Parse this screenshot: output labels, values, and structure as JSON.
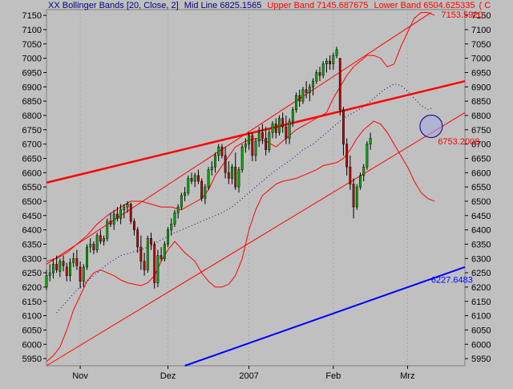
{
  "header": {
    "prefix": "XX Bollinger Bands [20, Close, 2]",
    "mid_text": "Mid Line 6825.1565",
    "upper_text": "Upper Band 7145.687675",
    "lower_text": "Lower Band 6504.625335",
    "tail_text": "( C"
  },
  "colors": {
    "background": "#c0c0c0",
    "upper_band": "#ff0000",
    "lower_band": "#ff0000",
    "mid_line": "#000080",
    "trend_red": "#ff0000",
    "trend_blue": "#0000ff",
    "candle_up": "#00b000",
    "candle_down": "#c00000",
    "header_left": "#000080",
    "header_right": "#ff0000"
  },
  "chart_data": {
    "type": "candlestick",
    "ylim": [
      5925,
      7170
    ],
    "y_ticks": [
      5950,
      6000,
      6050,
      6100,
      6150,
      6200,
      6250,
      6300,
      6350,
      6400,
      6450,
      6500,
      6550,
      6600,
      6650,
      6700,
      6750,
      6800,
      6850,
      6900,
      6950,
      7000,
      7050,
      7100,
      7150
    ],
    "x_range": [
      0,
      124
    ],
    "x_labels": [
      {
        "label": "Nov",
        "x": 10
      },
      {
        "label": "Dez",
        "x": 36
      },
      {
        "label": "2007",
        "x": 60
      },
      {
        "label": "Feb",
        "x": 85
      },
      {
        "label": "Mrz",
        "x": 107
      }
    ],
    "price_labels": [
      {
        "text": "7153.5920",
        "x": 117,
        "y": 7153,
        "color": "#ff0000"
      },
      {
        "text": "6753.2008",
        "x": 116,
        "y": 6710,
        "color": "#ff0000"
      },
      {
        "text": "6227.6483",
        "x": 114,
        "y": 6227,
        "color": "#0000ff"
      }
    ],
    "trendlines": [
      {
        "name": "resistance",
        "x1": 0,
        "y1": 6565,
        "x2": 124,
        "y2": 6920,
        "color": "#ff0000",
        "width": 2.5
      },
      {
        "name": "support",
        "x1": 41,
        "y1": 5925,
        "x2": 124,
        "y2": 6270,
        "color": "#0000ff",
        "width": 2
      },
      {
        "name": "channel-upper",
        "x1": 0,
        "y1": 6280,
        "x2": 114,
        "y2": 7160,
        "color": "#ff0000",
        "width": 1
      },
      {
        "name": "channel-lower",
        "x1": 0,
        "y1": 5925,
        "x2": 124,
        "y2": 6810,
        "color": "#ff0000",
        "width": 1
      }
    ],
    "circle_marker": {
      "x": 114,
      "y": 6762
    },
    "upper_band": [
      [
        0,
        6290
      ],
      [
        3,
        6300
      ],
      [
        6,
        6320
      ],
      [
        9,
        6350
      ],
      [
        12,
        6380
      ],
      [
        15,
        6420
      ],
      [
        18,
        6450
      ],
      [
        22,
        6480
      ],
      [
        25,
        6500
      ],
      [
        28,
        6500
      ],
      [
        31,
        6490
      ],
      [
        34,
        6480
      ],
      [
        37,
        6480
      ],
      [
        40,
        6470
      ],
      [
        43,
        6490
      ],
      [
        46,
        6510
      ],
      [
        48,
        6540
      ],
      [
        50,
        6590
      ],
      [
        53,
        6640
      ],
      [
        56,
        6690
      ],
      [
        59,
        6710
      ],
      [
        62,
        6720
      ],
      [
        65,
        6710
      ],
      [
        68,
        6690
      ],
      [
        71,
        6720
      ],
      [
        74,
        6750
      ],
      [
        77,
        6770
      ],
      [
        80,
        6790
      ],
      [
        83,
        6810
      ],
      [
        85,
        6860
      ],
      [
        87,
        6900
      ],
      [
        89,
        6940
      ],
      [
        91,
        6970
      ],
      [
        93,
        6990
      ],
      [
        95,
        7010
      ],
      [
        97,
        7010
      ],
      [
        99,
        7000
      ],
      [
        101,
        6970
      ],
      [
        103,
        6980
      ],
      [
        105,
        7040
      ],
      [
        107,
        7090
      ],
      [
        109,
        7140
      ],
      [
        111,
        7160
      ],
      [
        113,
        7160
      ],
      [
        115,
        7150
      ]
    ],
    "lower_band": [
      [
        0,
        5940
      ],
      [
        2,
        5960
      ],
      [
        4,
        5990
      ],
      [
        6,
        6050
      ],
      [
        8,
        6120
      ],
      [
        10,
        6170
      ],
      [
        12,
        6220
      ],
      [
        14,
        6250
      ],
      [
        16,
        6260
      ],
      [
        18,
        6250
      ],
      [
        20,
        6240
      ],
      [
        22,
        6225
      ],
      [
        24,
        6215
      ],
      [
        26,
        6210
      ],
      [
        28,
        6205
      ],
      [
        30,
        6215
      ],
      [
        32,
        6240
      ],
      [
        34,
        6290
      ],
      [
        36,
        6330
      ],
      [
        38,
        6360
      ],
      [
        41,
        6320
      ],
      [
        44,
        6290
      ],
      [
        46,
        6250
      ],
      [
        48,
        6220
      ],
      [
        50,
        6200
      ],
      [
        52,
        6200
      ],
      [
        54,
        6210
      ],
      [
        56,
        6240
      ],
      [
        58,
        6300
      ],
      [
        60,
        6400
      ],
      [
        62,
        6470
      ],
      [
        64,
        6520
      ],
      [
        66,
        6540
      ],
      [
        68,
        6560
      ],
      [
        70,
        6570
      ],
      [
        72,
        6575
      ],
      [
        74,
        6580
      ],
      [
        76,
        6590
      ],
      [
        78,
        6600
      ],
      [
        80,
        6610
      ],
      [
        82,
        6625
      ],
      [
        84,
        6630
      ],
      [
        86,
        6635
      ],
      [
        88,
        6650
      ],
      [
        90,
        6680
      ],
      [
        92,
        6720
      ],
      [
        94,
        6750
      ],
      [
        96,
        6770
      ],
      [
        97,
        6780
      ],
      [
        99,
        6770
      ],
      [
        101,
        6740
      ],
      [
        103,
        6700
      ],
      [
        105,
        6660
      ],
      [
        107,
        6620
      ],
      [
        109,
        6570
      ],
      [
        111,
        6530
      ],
      [
        113,
        6510
      ],
      [
        115,
        6500
      ]
    ],
    "mid_line": [
      [
        3,
        6110
      ],
      [
        6,
        6150
      ],
      [
        9,
        6190
      ],
      [
        12,
        6220
      ],
      [
        15,
        6250
      ],
      [
        18,
        6280
      ],
      [
        22,
        6310
      ],
      [
        25,
        6320
      ],
      [
        28,
        6330
      ],
      [
        31,
        6345
      ],
      [
        34,
        6365
      ],
      [
        37,
        6385
      ],
      [
        40,
        6400
      ],
      [
        43,
        6415
      ],
      [
        46,
        6430
      ],
      [
        49,
        6445
      ],
      [
        52,
        6460
      ],
      [
        55,
        6480
      ],
      [
        58,
        6510
      ],
      [
        61,
        6540
      ],
      [
        64,
        6570
      ],
      [
        67,
        6600
      ],
      [
        70,
        6625
      ],
      [
        73,
        6650
      ],
      [
        76,
        6680
      ],
      [
        79,
        6700
      ],
      [
        82,
        6730
      ],
      [
        85,
        6760
      ],
      [
        88,
        6790
      ],
      [
        91,
        6810
      ],
      [
        94,
        6830
      ],
      [
        97,
        6860
      ],
      [
        100,
        6890
      ],
      [
        103,
        6910
      ],
      [
        105,
        6905
      ],
      [
        107,
        6885
      ],
      [
        109,
        6860
      ],
      [
        111,
        6835
      ],
      [
        113,
        6820
      ],
      [
        114,
        6825
      ]
    ],
    "candles": [
      [
        0,
        6200,
        6260,
        6190,
        6240
      ],
      [
        1,
        6240,
        6280,
        6220,
        6250
      ],
      [
        2,
        6250,
        6300,
        6230,
        6280
      ],
      [
        3,
        6280,
        6310,
        6250,
        6260
      ],
      [
        4,
        6255,
        6300,
        6235,
        6290
      ],
      [
        5,
        6290,
        6310,
        6255,
        6275
      ],
      [
        6,
        6270,
        6285,
        6220,
        6240
      ],
      [
        7,
        6240,
        6300,
        6220,
        6285
      ],
      [
        8,
        6285,
        6320,
        6270,
        6300
      ],
      [
        9,
        6300,
        6330,
        6260,
        6275
      ],
      [
        10,
        6270,
        6290,
        6195,
        6220
      ],
      [
        11,
        6220,
        6280,
        6200,
        6270
      ],
      [
        12,
        6270,
        6350,
        6260,
        6340
      ],
      [
        13,
        6340,
        6370,
        6320,
        6350
      ],
      [
        14,
        6350,
        6360,
        6315,
        6330
      ],
      [
        15,
        6330,
        6390,
        6320,
        6380
      ],
      [
        16,
        6380,
        6400,
        6350,
        6360
      ],
      [
        17,
        6360,
        6380,
        6345,
        6370
      ],
      [
        18,
        6370,
        6440,
        6360,
        6430
      ],
      [
        19,
        6430,
        6460,
        6410,
        6420
      ],
      [
        20,
        6420,
        6470,
        6400,
        6455
      ],
      [
        21,
        6455,
        6480,
        6430,
        6440
      ],
      [
        22,
        6440,
        6490,
        6420,
        6470
      ],
      [
        23,
        6470,
        6490,
        6440,
        6480
      ],
      [
        24,
        6480,
        6500,
        6460,
        6490
      ],
      [
        25,
        6490,
        6495,
        6420,
        6430
      ],
      [
        26,
        6430,
        6440,
        6380,
        6400
      ],
      [
        27,
        6400,
        6410,
        6320,
        6340
      ],
      [
        28,
        6340,
        6380,
        6260,
        6290
      ],
      [
        29,
        6290,
        6320,
        6240,
        6260
      ],
      [
        30,
        6260,
        6380,
        6250,
        6370
      ],
      [
        31,
        6370,
        6390,
        6330,
        6350
      ],
      [
        32,
        6350,
        6360,
        6195,
        6215
      ],
      [
        33,
        6215,
        6330,
        6200,
        6310
      ],
      [
        34,
        6310,
        6340,
        6290,
        6300
      ],
      [
        35,
        6300,
        6360,
        6290,
        6350
      ],
      [
        36,
        6350,
        6410,
        6340,
        6400
      ],
      [
        37,
        6400,
        6440,
        6380,
        6420
      ],
      [
        38,
        6420,
        6470,
        6410,
        6460
      ],
      [
        39,
        6460,
        6490,
        6440,
        6480
      ],
      [
        40,
        6480,
        6530,
        6470,
        6520
      ],
      [
        41,
        6520,
        6550,
        6500,
        6530
      ],
      [
        42,
        6530,
        6590,
        6520,
        6580
      ],
      [
        43,
        6580,
        6600,
        6560,
        6570
      ],
      [
        44,
        6570,
        6600,
        6550,
        6590
      ],
      [
        45,
        6590,
        6610,
        6560,
        6570
      ],
      [
        46,
        6570,
        6580,
        6500,
        6510
      ],
      [
        47,
        6510,
        6560,
        6490,
        6550
      ],
      [
        48,
        6550,
        6620,
        6540,
        6610
      ],
      [
        49,
        6610,
        6640,
        6590,
        6620
      ],
      [
        50,
        6620,
        6670,
        6600,
        6660
      ],
      [
        51,
        6660,
        6700,
        6640,
        6690
      ],
      [
        52,
        6690,
        6700,
        6650,
        6660
      ],
      [
        53,
        6660,
        6690,
        6580,
        6600
      ],
      [
        54,
        6600,
        6640,
        6560,
        6580
      ],
      [
        55,
        6580,
        6630,
        6560,
        6620
      ],
      [
        56,
        6620,
        6670,
        6540,
        6550
      ],
      [
        57,
        6550,
        6620,
        6530,
        6610
      ],
      [
        58,
        6610,
        6700,
        6600,
        6690
      ],
      [
        59,
        6690,
        6720,
        6670,
        6700
      ],
      [
        60,
        6700,
        6740,
        6680,
        6730
      ],
      [
        61,
        6730,
        6740,
        6640,
        6660
      ],
      [
        62,
        6660,
        6720,
        6640,
        6710
      ],
      [
        63,
        6710,
        6760,
        6690,
        6740
      ],
      [
        64,
        6740,
        6770,
        6700,
        6720
      ],
      [
        65,
        6720,
        6760,
        6660,
        6680
      ],
      [
        66,
        6680,
        6750,
        6670,
        6740
      ],
      [
        67,
        6740,
        6780,
        6720,
        6770
      ],
      [
        68,
        6770,
        6790,
        6720,
        6740
      ],
      [
        69,
        6740,
        6800,
        6730,
        6790
      ],
      [
        70,
        6790,
        6810,
        6740,
        6760
      ],
      [
        71,
        6760,
        6800,
        6700,
        6720
      ],
      [
        72,
        6720,
        6790,
        6700,
        6780
      ],
      [
        73,
        6780,
        6830,
        6760,
        6820
      ],
      [
        74,
        6820,
        6880,
        6810,
        6870
      ],
      [
        75,
        6870,
        6890,
        6830,
        6850
      ],
      [
        76,
        6850,
        6900,
        6840,
        6890
      ],
      [
        77,
        6890,
        6920,
        6860,
        6880
      ],
      [
        78,
        6880,
        6910,
        6850,
        6900
      ],
      [
        79,
        6900,
        6930,
        6870,
        6920
      ],
      [
        80,
        6920,
        6960,
        6910,
        6950
      ],
      [
        81,
        6950,
        6970,
        6920,
        6940
      ],
      [
        82,
        6940,
        6990,
        6930,
        6980
      ],
      [
        83,
        6980,
        7000,
        6950,
        6990
      ],
      [
        84,
        6990,
        7010,
        6960,
        6980
      ],
      [
        85,
        6980,
        7020,
        6960,
        7010
      ],
      [
        86,
        7010,
        7040,
        7000,
        7030
      ],
      [
        87,
        7000,
        7000,
        6800,
        6820
      ],
      [
        88,
        6820,
        6830,
        6660,
        6700
      ],
      [
        89,
        6700,
        6720,
        6590,
        6620
      ],
      [
        90,
        6620,
        6660,
        6540,
        6560
      ],
      [
        91,
        6560,
        6580,
        6440,
        6480
      ],
      [
        92,
        6480,
        6560,
        6470,
        6550
      ],
      [
        93,
        6550,
        6600,
        6540,
        6590
      ],
      [
        94,
        6590,
        6630,
        6570,
        6620
      ],
      [
        95,
        6620,
        6710,
        6610,
        6700
      ],
      [
        96,
        6700,
        6740,
        6680,
        6720
      ]
    ]
  }
}
